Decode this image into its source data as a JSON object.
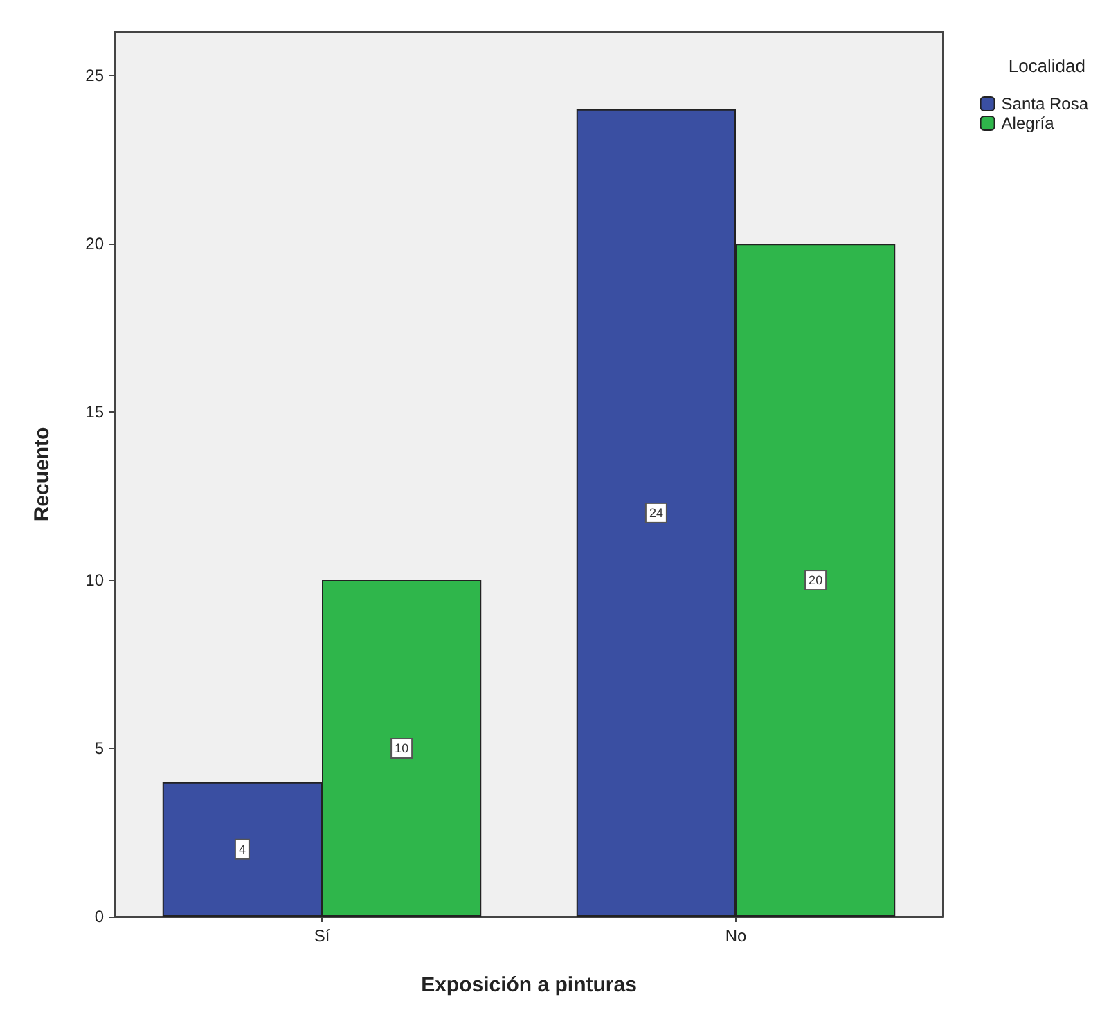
{
  "chart_data": {
    "type": "bar",
    "xlabel": "Exposición a pinturas",
    "ylabel": "Recuento",
    "legend_title": "Localidad",
    "categories": [
      "Sí",
      "No"
    ],
    "series": [
      {
        "name": "Santa Rosa",
        "color": "#3a4fa2",
        "values": [
          4,
          24
        ]
      },
      {
        "name": "Alegría",
        "color": "#2fb64b",
        "values": [
          10,
          20
        ]
      }
    ],
    "ylim": [
      0,
      26.3
    ],
    "yticks": [
      0,
      5,
      10,
      15,
      20,
      25
    ],
    "grid": false,
    "legend": "top right",
    "data_labels": true
  }
}
